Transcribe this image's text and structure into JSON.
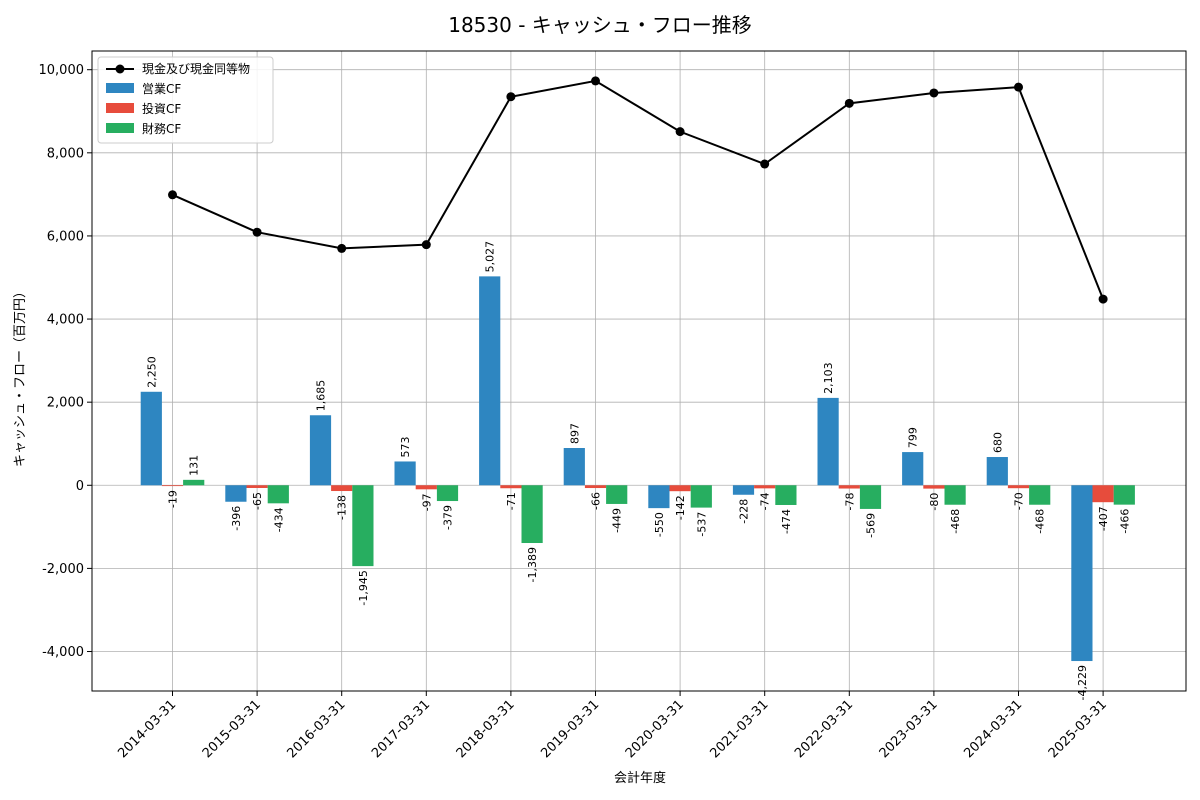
{
  "chart_data": {
    "type": "bar",
    "title": "18530 - キャッシュ・フロー推移",
    "xlabel": "会計年度",
    "ylabel": "キャッシュ・フロー（百万円）",
    "ylim": [
      -4950,
      10450
    ],
    "yticks": [
      -4000,
      -2000,
      0,
      2000,
      4000,
      6000,
      8000,
      10000
    ],
    "ytick_labels": [
      "-4,000",
      "-2,000",
      "0",
      "2,000",
      "4,000",
      "6,000",
      "8,000",
      "10,000"
    ],
    "grid": true,
    "legend_position": "top-left",
    "categories": [
      "2014-03-31",
      "2015-03-31",
      "2016-03-31",
      "2017-03-31",
      "2018-03-31",
      "2019-03-31",
      "2020-03-31",
      "2021-03-31",
      "2022-03-31",
      "2023-03-31",
      "2024-03-31",
      "2025-03-31"
    ],
    "series": [
      {
        "name": "営業CF",
        "kind": "bar",
        "color": "#2e86c1",
        "values": [
          2250,
          -396,
          1685,
          573,
          5027,
          897,
          -550,
          -228,
          2103,
          799,
          680,
          -4229
        ],
        "labels": [
          "2,250",
          "-396",
          "1,685",
          "573",
          "5,027",
          "897",
          "-550",
          "-228",
          "2,103",
          "799",
          "680",
          "-4,229"
        ]
      },
      {
        "name": "投資CF",
        "kind": "bar",
        "color": "#e74c3c",
        "values": [
          -19,
          -65,
          -138,
          -97,
          -71,
          -66,
          -142,
          -74,
          -78,
          -80,
          -70,
          -407
        ],
        "labels": [
          "-19",
          "-65",
          "-138",
          "-97",
          "-71",
          "-66",
          "-142",
          "-74",
          "-78",
          "-80",
          "-70",
          "-407"
        ]
      },
      {
        "name": "財務CF",
        "kind": "bar",
        "color": "#27ae60",
        "values": [
          131,
          -434,
          -1945,
          -379,
          -1389,
          -449,
          -537,
          -474,
          -569,
          -468,
          -468,
          -466
        ],
        "labels": [
          "131",
          "-434",
          "-1,945",
          "-379",
          "-1,389",
          "-449",
          "-537",
          "-474",
          "-569",
          "-468",
          "-468",
          "-466"
        ]
      },
      {
        "name": "現金及び現金同等物",
        "kind": "line",
        "color": "#000000",
        "values": [
          6990,
          6090,
          5700,
          5790,
          9350,
          9730,
          8510,
          7730,
          9190,
          9440,
          9580,
          4480
        ]
      }
    ]
  }
}
